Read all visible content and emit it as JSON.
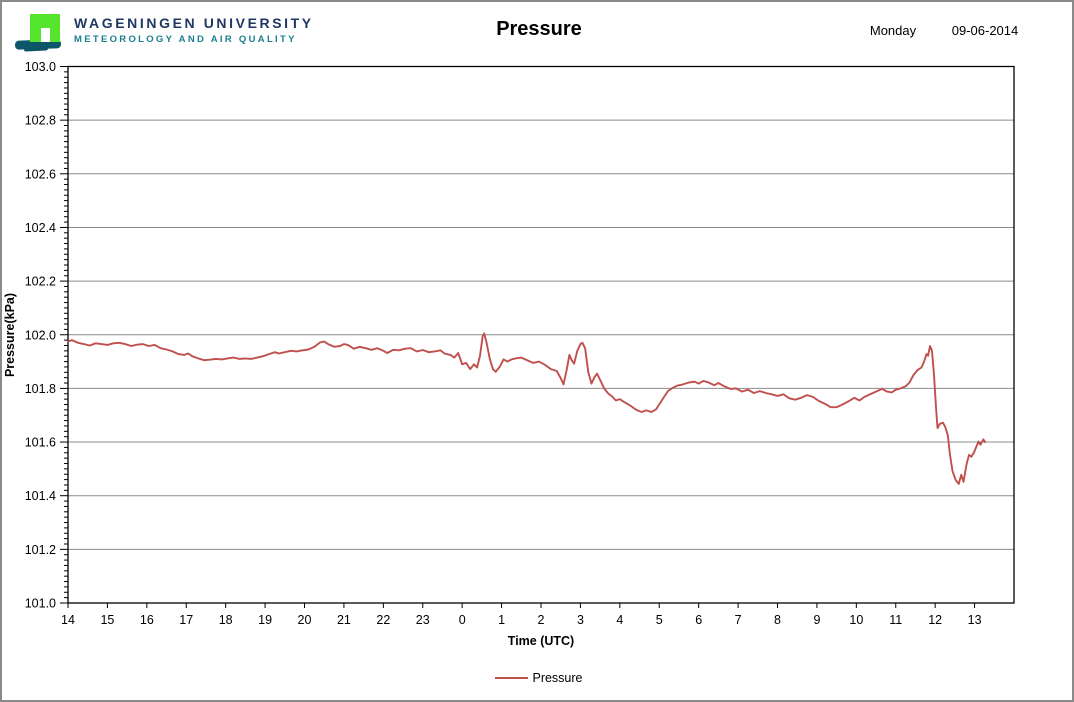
{
  "colors": {
    "logo_green": "#54E52C",
    "logo_teal": "#0D5667",
    "univ_navy": "#1F3864",
    "univ_teal": "#1B7E91",
    "gridline": "#8C8C8C",
    "axis": "#000000",
    "series_red": "#C0504D"
  },
  "header": {
    "university_line1": "WAGENINGEN UNIVERSITY",
    "university_line2": "METEOROLOGY AND AIR QUALITY",
    "title": "Pressure",
    "day": "Monday",
    "date": "09-06-2014"
  },
  "legend": {
    "label": "Pressure"
  },
  "chart_data": {
    "type": "line",
    "title": "Pressure",
    "xlabel": "Time (UTC)",
    "ylabel": "Pressure(kPa)",
    "x_tick_labels": [
      "14",
      "15",
      "16",
      "17",
      "18",
      "19",
      "20",
      "21",
      "22",
      "23",
      "0",
      "1",
      "2",
      "3",
      "4",
      "5",
      "6",
      "7",
      "8",
      "9",
      "10",
      "11",
      "12",
      "13"
    ],
    "x_hours_total": 24,
    "ylim": [
      101.0,
      103.0
    ],
    "y_major_step": 0.2,
    "y_minor_step": 0.02,
    "y_tick_labels": [
      "103.0",
      "102.8",
      "102.6",
      "102.4",
      "102.2",
      "102.0",
      "101.8",
      "101.6",
      "101.4",
      "101.2",
      "101.0"
    ],
    "grid": "horizontal-only",
    "legend_position": "bottom",
    "series": [
      {
        "name": "Pressure",
        "color": "#C0504D",
        "x_unit": "hours_since_14UTC",
        "points": [
          [
            0,
            101.975
          ],
          [
            0.1,
            101.98
          ],
          [
            0.25,
            101.97
          ],
          [
            0.4,
            101.965
          ],
          [
            0.55,
            101.96
          ],
          [
            0.7,
            101.968
          ],
          [
            0.85,
            101.965
          ],
          [
            1.0,
            101.962
          ],
          [
            1.15,
            101.968
          ],
          [
            1.3,
            101.97
          ],
          [
            1.45,
            101.965
          ],
          [
            1.6,
            101.958
          ],
          [
            1.75,
            101.963
          ],
          [
            1.9,
            101.965
          ],
          [
            2.05,
            101.958
          ],
          [
            2.2,
            101.962
          ],
          [
            2.35,
            101.95
          ],
          [
            2.5,
            101.945
          ],
          [
            2.65,
            101.938
          ],
          [
            2.8,
            101.928
          ],
          [
            2.95,
            101.925
          ],
          [
            3.05,
            101.93
          ],
          [
            3.15,
            101.92
          ],
          [
            3.3,
            101.912
          ],
          [
            3.45,
            101.905
          ],
          [
            3.6,
            101.907
          ],
          [
            3.75,
            101.91
          ],
          [
            3.9,
            101.908
          ],
          [
            4.05,
            101.912
          ],
          [
            4.2,
            101.915
          ],
          [
            4.35,
            101.91
          ],
          [
            4.5,
            101.912
          ],
          [
            4.65,
            101.91
          ],
          [
            4.8,
            101.915
          ],
          [
            4.95,
            101.92
          ],
          [
            5.1,
            101.928
          ],
          [
            5.25,
            101.935
          ],
          [
            5.35,
            101.93
          ],
          [
            5.5,
            101.935
          ],
          [
            5.65,
            101.94
          ],
          [
            5.8,
            101.938
          ],
          [
            5.95,
            101.942
          ],
          [
            6.1,
            101.945
          ],
          [
            6.25,
            101.955
          ],
          [
            6.4,
            101.972
          ],
          [
            6.5,
            101.975
          ],
          [
            6.6,
            101.965
          ],
          [
            6.75,
            101.955
          ],
          [
            6.9,
            101.958
          ],
          [
            7.0,
            101.965
          ],
          [
            7.1,
            101.962
          ],
          [
            7.25,
            101.948
          ],
          [
            7.4,
            101.955
          ],
          [
            7.55,
            101.95
          ],
          [
            7.7,
            101.944
          ],
          [
            7.85,
            101.95
          ],
          [
            8.0,
            101.94
          ],
          [
            8.1,
            101.932
          ],
          [
            8.25,
            101.944
          ],
          [
            8.4,
            101.942
          ],
          [
            8.55,
            101.948
          ],
          [
            8.7,
            101.95
          ],
          [
            8.85,
            101.938
          ],
          [
            9.0,
            101.943
          ],
          [
            9.15,
            101.935
          ],
          [
            9.3,
            101.938
          ],
          [
            9.45,
            101.942
          ],
          [
            9.55,
            101.93
          ],
          [
            9.7,
            101.925
          ],
          [
            9.8,
            101.915
          ],
          [
            9.9,
            101.932
          ],
          [
            10.0,
            101.89
          ],
          [
            10.1,
            101.895
          ],
          [
            10.2,
            101.872
          ],
          [
            10.3,
            101.89
          ],
          [
            10.38,
            101.878
          ],
          [
            10.45,
            101.92
          ],
          [
            10.52,
            101.995
          ],
          [
            10.56,
            102.005
          ],
          [
            10.62,
            101.97
          ],
          [
            10.7,
            101.91
          ],
          [
            10.78,
            101.872
          ],
          [
            10.85,
            101.862
          ],
          [
            10.95,
            101.88
          ],
          [
            11.05,
            101.908
          ],
          [
            11.15,
            101.9
          ],
          [
            11.25,
            101.908
          ],
          [
            11.35,
            101.912
          ],
          [
            11.5,
            101.915
          ],
          [
            11.65,
            101.905
          ],
          [
            11.8,
            101.895
          ],
          [
            11.95,
            101.9
          ],
          [
            12.1,
            101.888
          ],
          [
            12.25,
            101.872
          ],
          [
            12.4,
            101.865
          ],
          [
            12.5,
            101.838
          ],
          [
            12.57,
            101.815
          ],
          [
            12.65,
            101.868
          ],
          [
            12.72,
            101.925
          ],
          [
            12.78,
            101.905
          ],
          [
            12.84,
            101.892
          ],
          [
            12.92,
            101.94
          ],
          [
            13.0,
            101.965
          ],
          [
            13.05,
            101.97
          ],
          [
            13.12,
            101.95
          ],
          [
            13.2,
            101.86
          ],
          [
            13.28,
            101.818
          ],
          [
            13.35,
            101.84
          ],
          [
            13.42,
            101.855
          ],
          [
            13.5,
            101.832
          ],
          [
            13.6,
            101.8
          ],
          [
            13.7,
            101.782
          ],
          [
            13.8,
            101.77
          ],
          [
            13.9,
            101.755
          ],
          [
            14.0,
            101.76
          ],
          [
            14.1,
            101.75
          ],
          [
            14.2,
            101.742
          ],
          [
            14.3,
            101.732
          ],
          [
            14.42,
            101.72
          ],
          [
            14.55,
            101.712
          ],
          [
            14.68,
            101.718
          ],
          [
            14.8,
            101.712
          ],
          [
            14.92,
            101.722
          ],
          [
            15.02,
            101.745
          ],
          [
            15.12,
            101.768
          ],
          [
            15.22,
            101.79
          ],
          [
            15.32,
            101.8
          ],
          [
            15.45,
            101.81
          ],
          [
            15.6,
            101.815
          ],
          [
            15.75,
            101.822
          ],
          [
            15.9,
            101.825
          ],
          [
            16.0,
            101.818
          ],
          [
            16.12,
            101.828
          ],
          [
            16.25,
            101.822
          ],
          [
            16.4,
            101.812
          ],
          [
            16.5,
            101.82
          ],
          [
            16.65,
            101.808
          ],
          [
            16.8,
            101.798
          ],
          [
            16.95,
            101.8
          ],
          [
            17.1,
            101.788
          ],
          [
            17.25,
            101.795
          ],
          [
            17.4,
            101.783
          ],
          [
            17.55,
            101.79
          ],
          [
            17.7,
            101.783
          ],
          [
            17.85,
            101.778
          ],
          [
            18.0,
            101.772
          ],
          [
            18.15,
            101.778
          ],
          [
            18.3,
            101.763
          ],
          [
            18.45,
            101.758
          ],
          [
            18.6,
            101.765
          ],
          [
            18.75,
            101.775
          ],
          [
            18.9,
            101.768
          ],
          [
            19.05,
            101.753
          ],
          [
            19.2,
            101.743
          ],
          [
            19.35,
            101.73
          ],
          [
            19.5,
            101.73
          ],
          [
            19.65,
            101.74
          ],
          [
            19.8,
            101.752
          ],
          [
            19.95,
            101.765
          ],
          [
            20.08,
            101.755
          ],
          [
            20.2,
            101.768
          ],
          [
            20.35,
            101.778
          ],
          [
            20.5,
            101.788
          ],
          [
            20.65,
            101.798
          ],
          [
            20.78,
            101.788
          ],
          [
            20.9,
            101.785
          ],
          [
            21.0,
            101.795
          ],
          [
            21.12,
            101.8
          ],
          [
            21.25,
            101.808
          ],
          [
            21.35,
            101.822
          ],
          [
            21.45,
            101.85
          ],
          [
            21.55,
            101.868
          ],
          [
            21.65,
            101.878
          ],
          [
            21.72,
            101.9
          ],
          [
            21.78,
            101.928
          ],
          [
            21.82,
            101.922
          ],
          [
            21.87,
            101.958
          ],
          [
            21.92,
            101.94
          ],
          [
            21.97,
            101.85
          ],
          [
            22.02,
            101.73
          ],
          [
            22.06,
            101.652
          ],
          [
            22.12,
            101.668
          ],
          [
            22.2,
            101.672
          ],
          [
            22.26,
            101.655
          ],
          [
            22.32,
            101.625
          ],
          [
            22.38,
            101.55
          ],
          [
            22.44,
            101.492
          ],
          [
            22.52,
            101.458
          ],
          [
            22.6,
            101.444
          ],
          [
            22.66,
            101.478
          ],
          [
            22.72,
            101.452
          ],
          [
            22.8,
            101.52
          ],
          [
            22.86,
            101.552
          ],
          [
            22.92,
            101.545
          ],
          [
            22.98,
            101.56
          ],
          [
            23.05,
            101.585
          ],
          [
            23.1,
            101.602
          ],
          [
            23.15,
            101.59
          ],
          [
            23.22,
            101.61
          ],
          [
            23.27,
            101.6
          ]
        ]
      }
    ]
  }
}
